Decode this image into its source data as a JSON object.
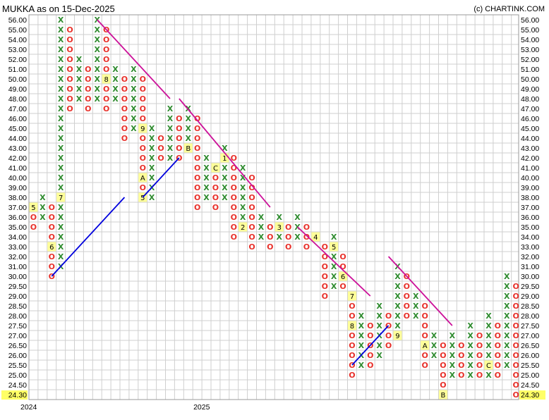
{
  "title": "MUKKA as on 15-Dec-2025",
  "credit": "(c) CHARTINK.COM",
  "chart_data": {
    "type": "point-and-figure",
    "y_levels": [
      56.0,
      55.0,
      54.0,
      53.0,
      52.0,
      51.0,
      50.0,
      49.0,
      48.0,
      47.0,
      46.0,
      45.0,
      44.0,
      43.0,
      42.0,
      41.0,
      40.0,
      39.0,
      38.0,
      37.0,
      36.0,
      35.0,
      34.0,
      33.0,
      32.0,
      31.0,
      30.0,
      29.5,
      29.0,
      28.5,
      28.0,
      27.5,
      27.0,
      26.5,
      26.0,
      25.5,
      25.0,
      24.5,
      24.3
    ],
    "y_tick_labels": [
      "56.00",
      "55.00",
      "54.00",
      "53.00",
      "52.00",
      "51.00",
      "50.00",
      "49.00",
      "48.00",
      "47.00",
      "46.00",
      "45.00",
      "44.00",
      "43.00",
      "42.00",
      "41.00",
      "40.00",
      "39.00",
      "38.00",
      "37.00",
      "36.00",
      "35.00",
      "34.00",
      "33.00",
      "32.00",
      "31.00",
      "30.00",
      "29.50",
      "29.00",
      "28.50",
      "28.00",
      "27.50",
      "27.00",
      "26.50",
      "26.00",
      "25.50",
      "25.00",
      "24.50",
      "24.30"
    ],
    "last_price": "24.30",
    "x_labels": [
      {
        "label": "2024",
        "column": 0
      },
      {
        "label": "2025",
        "column": 19
      }
    ],
    "columns": [
      {
        "type": "O",
        "top": 37.0,
        "bottom": 35.0,
        "markers": {
          "37.0": "5"
        }
      },
      {
        "type": "X",
        "top": 38.0,
        "bottom": 36.0
      },
      {
        "type": "O",
        "top": 37.0,
        "bottom": 30.0,
        "markers": {
          "33.0": "6"
        }
      },
      {
        "type": "X",
        "top": 56.0,
        "bottom": 31.0,
        "markers": {
          "38.0": "7"
        }
      },
      {
        "type": "O",
        "top": 55.0,
        "bottom": 47.0
      },
      {
        "type": "X",
        "top": 52.0,
        "bottom": 48.0
      },
      {
        "type": "O",
        "top": 51.0,
        "bottom": 47.0
      },
      {
        "type": "X",
        "top": 56.0,
        "bottom": 48.0
      },
      {
        "type": "O",
        "top": 55.0,
        "bottom": 47.0,
        "markers": {
          "50.0": "8"
        }
      },
      {
        "type": "X",
        "top": 51.0,
        "bottom": 48.0
      },
      {
        "type": "O",
        "top": 50.0,
        "bottom": 44.0
      },
      {
        "type": "X",
        "top": 51.0,
        "bottom": 45.0
      },
      {
        "type": "O",
        "top": 50.0,
        "bottom": 38.0,
        "markers": {
          "45.0": "9",
          "40.0": "A",
          "38.0": "5"
        }
      },
      {
        "type": "X",
        "top": 45.0,
        "bottom": 38.0
      },
      {
        "type": "O",
        "top": 44.0,
        "bottom": 42.0
      },
      {
        "type": "X",
        "top": 47.0,
        "bottom": 42.0
      },
      {
        "type": "O",
        "top": 46.0,
        "bottom": 42.0
      },
      {
        "type": "X",
        "top": 47.0,
        "bottom": 43.0,
        "markers": {
          "43.0": "B"
        }
      },
      {
        "type": "O",
        "top": 46.0,
        "bottom": 37.0
      },
      {
        "type": "X",
        "top": 42.0,
        "bottom": 38.0
      },
      {
        "type": "O",
        "top": 41.0,
        "bottom": 37.0,
        "markers": {
          "41.0": "C"
        }
      },
      {
        "type": "X",
        "top": 43.0,
        "bottom": 38.0,
        "markers": {
          "42.0": "1"
        }
      },
      {
        "type": "O",
        "top": 42.0,
        "bottom": 34.0
      },
      {
        "type": "X",
        "top": 41.0,
        "bottom": 35.0,
        "markers": {
          "35.0": "2"
        }
      },
      {
        "type": "O",
        "top": 40.0,
        "bottom": 33.0
      },
      {
        "type": "X",
        "top": 36.0,
        "bottom": 34.0
      },
      {
        "type": "O",
        "top": 35.0,
        "bottom": 33.0
      },
      {
        "type": "X",
        "top": 36.0,
        "bottom": 34.0,
        "markers": {
          "35.0": "3"
        }
      },
      {
        "type": "O",
        "top": 35.0,
        "bottom": 33.0
      },
      {
        "type": "X",
        "top": 36.0,
        "bottom": 34.0
      },
      {
        "type": "O",
        "top": 35.0,
        "bottom": 33.0
      },
      {
        "type": "X",
        "top": 34.0,
        "bottom": 34.0,
        "markers": {
          "34.0": "4"
        }
      },
      {
        "type": "O",
        "top": 33.0,
        "bottom": 29.0
      },
      {
        "type": "X",
        "top": 34.0,
        "bottom": 29.5,
        "markers": {
          "33.0": "5"
        }
      },
      {
        "type": "O",
        "top": 32.0,
        "bottom": 29.5,
        "markers": {
          "30.0": "6"
        }
      },
      {
        "type": "O",
        "top": 29.0,
        "bottom": 25.0,
        "markers": {
          "29.0": "7",
          "27.5": "8"
        }
      },
      {
        "type": "X",
        "top": 28.0,
        "bottom": 25.5
      },
      {
        "type": "O",
        "top": 27.5,
        "bottom": 25.5
      },
      {
        "type": "X",
        "top": 28.5,
        "bottom": 26.0
      },
      {
        "type": "O",
        "top": 28.0,
        "bottom": 26.5
      },
      {
        "type": "X",
        "top": 31.0,
        "bottom": 27.0,
        "markers": {
          "27.0": "9"
        }
      },
      {
        "type": "O",
        "top": 30.0,
        "bottom": 28.0
      },
      {
        "type": "X",
        "top": 29.0,
        "bottom": 28.0
      },
      {
        "type": "O",
        "top": 28.5,
        "bottom": 25.5,
        "markers": {
          "26.5": "A"
        }
      },
      {
        "type": "X",
        "top": 27.0,
        "bottom": 26.0
      },
      {
        "type": "O",
        "top": 26.5,
        "bottom": 24.3,
        "markers": {
          "24.3": "B"
        }
      },
      {
        "type": "X",
        "top": 27.0,
        "bottom": 25.0
      },
      {
        "type": "O",
        "top": 26.5,
        "bottom": 25.0
      },
      {
        "type": "X",
        "top": 27.5,
        "bottom": 25.0
      },
      {
        "type": "O",
        "top": 27.0,
        "bottom": 25.0
      },
      {
        "type": "X",
        "top": 28.0,
        "bottom": 25.0,
        "markers": {
          "25.5": "C"
        }
      },
      {
        "type": "O",
        "top": 27.5,
        "bottom": 25.0
      },
      {
        "type": "X",
        "top": 30.0,
        "bottom": 25.5
      },
      {
        "type": "O",
        "top": 29.5,
        "bottom": 24.3
      }
    ],
    "trendlines": [
      {
        "kind": "support",
        "color": "#0000dd",
        "from": {
          "column": 2,
          "price": 30.0
        },
        "to": {
          "column": 10,
          "price": 38.0
        }
      },
      {
        "kind": "support",
        "color": "#0000dd",
        "from": {
          "column": 12,
          "price": 38.0
        },
        "to": {
          "column": 16,
          "price": 42.0
        }
      },
      {
        "kind": "support",
        "color": "#0000dd",
        "from": {
          "column": 35,
          "price": 25.5
        },
        "to": {
          "column": 39,
          "price": 27.5
        }
      },
      {
        "kind": "resistance",
        "color": "#cc1199",
        "from": {
          "column": 7,
          "price": 56.0
        },
        "to": {
          "column": 15,
          "price": 48.0
        }
      },
      {
        "kind": "resistance",
        "color": "#cc1199",
        "from": {
          "column": 16,
          "price": 48.0
        },
        "to": {
          "column": 26,
          "price": 37.0
        }
      },
      {
        "kind": "resistance",
        "color": "#cc1199",
        "from": {
          "column": 29,
          "price": 35.0
        },
        "to": {
          "column": 37,
          "price": 29.0
        }
      },
      {
        "kind": "resistance",
        "color": "#cc1199",
        "from": {
          "column": 39,
          "price": 32.0
        },
        "to": {
          "column": 46,
          "price": 27.5
        }
      }
    ]
  }
}
